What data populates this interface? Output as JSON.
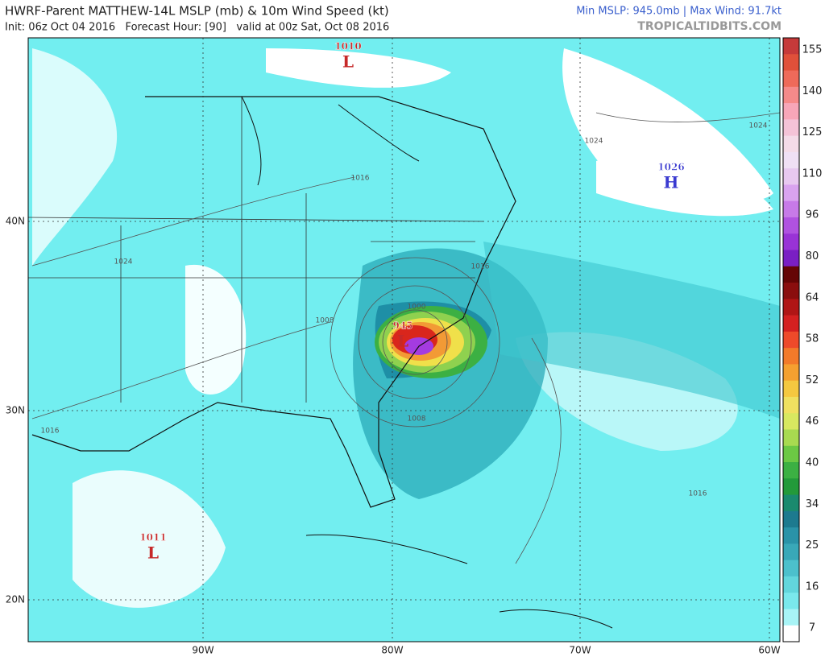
{
  "header": {
    "title": "HWRF-Parent MATTHEW-14L MSLP (mb) & 10m Wind Speed (kt)",
    "subtitle": "Init: 06z Oct 04 2016   Forecast Hour: [90]   valid at 00z Sat, Oct 08 2016",
    "stats": "Min MSLP: 945.0mb | Max Wind: 91.7kt",
    "source": "TROPICALTIDBITS.COM"
  },
  "colorbar": {
    "labels": [
      155,
      140,
      125,
      110,
      96,
      80,
      64,
      58,
      52,
      46,
      40,
      34,
      25,
      16,
      7
    ]
  },
  "map": {
    "latitude_labels": [
      "40N",
      "30N",
      "20N"
    ],
    "longitude_labels": [
      "90W",
      "80W",
      "70W",
      "60W"
    ],
    "pressure_centers": [
      {
        "value": "1010",
        "symbol": "L"
      },
      {
        "value": "1026",
        "symbol": "H"
      },
      {
        "value": "1011",
        "symbol": "L"
      },
      {
        "value": "945",
        "symbol": "L"
      }
    ],
    "isobar_labels": [
      "1024",
      "1024",
      "1016",
      "1024",
      "1016",
      "1000",
      "1008",
      "1008",
      "1016",
      "1016"
    ]
  }
}
